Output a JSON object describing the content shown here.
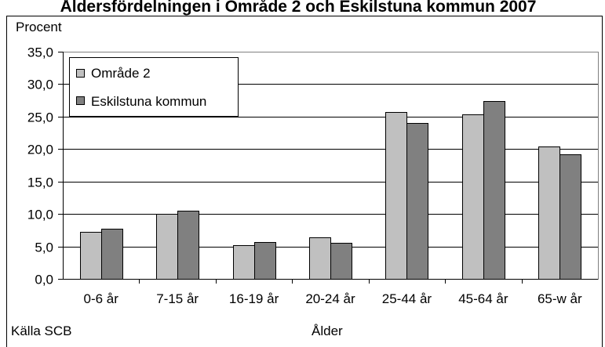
{
  "chart_data": {
    "type": "bar",
    "title": "Åldersfördelningen i Område 2 och Eskilstuna kommun 2007",
    "ylabel": "Procent",
    "xlabel": "Ålder",
    "source": "Källa SCB",
    "ylim": [
      0,
      35
    ],
    "yticks": [
      "0,0",
      "5,0",
      "10,0",
      "15,0",
      "20,0",
      "25,0",
      "30,0",
      "35,0"
    ],
    "ytick_values": [
      0,
      5,
      10,
      15,
      20,
      25,
      30,
      35
    ],
    "categories": [
      "0-6 år",
      "7-15 år",
      "16-19 år",
      "20-24 år",
      "25-44 år",
      "45-64 år",
      "65-w  år"
    ],
    "series": [
      {
        "name": "Område 2",
        "color": "#c0c0c0",
        "values": [
          7.2,
          10.0,
          5.2,
          6.4,
          25.7,
          25.4,
          20.4
        ]
      },
      {
        "name": "Eskilstuna kommun",
        "color": "#808080",
        "values": [
          7.7,
          10.5,
          5.7,
          5.5,
          24.0,
          27.4,
          19.2
        ]
      }
    ],
    "grid": true,
    "legend_position": "top-left"
  }
}
